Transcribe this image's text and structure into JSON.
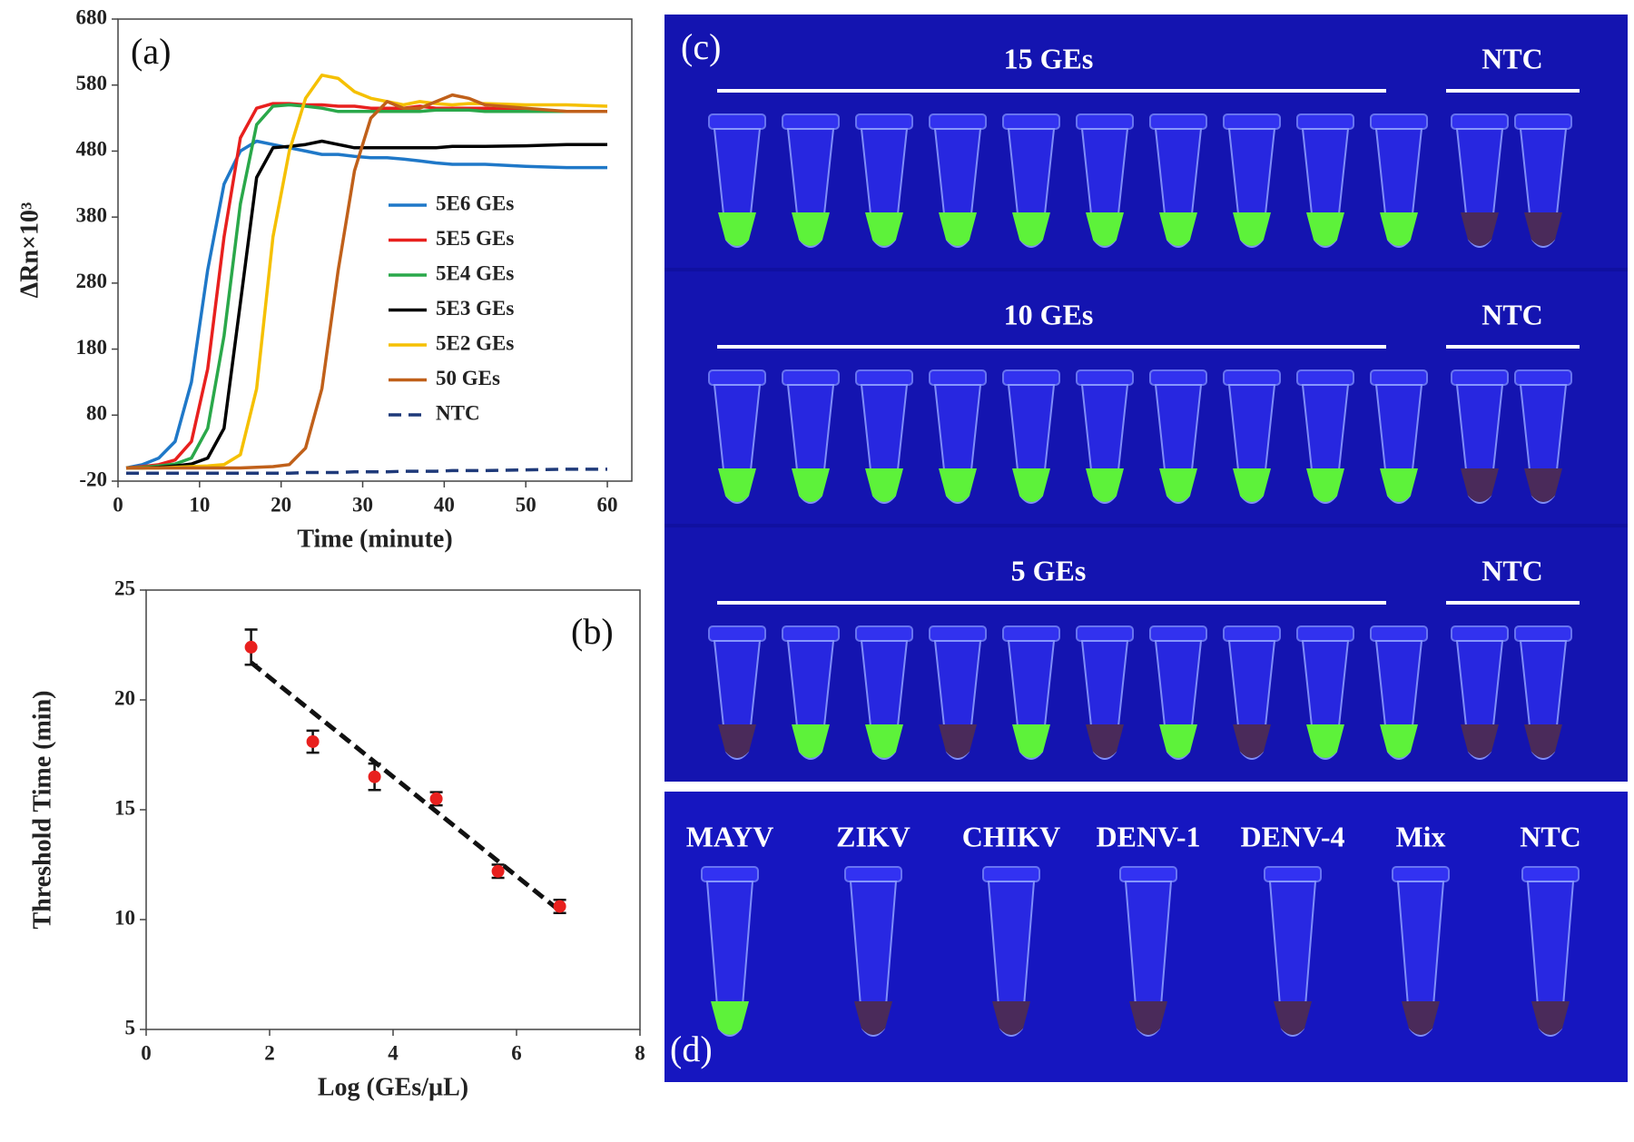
{
  "chart_data": [
    {
      "type": "line",
      "panel_label": "(a)",
      "x_label": "Time (minute)",
      "y_label": "ΔRn×10³",
      "x": [
        1,
        3,
        5,
        7,
        9,
        11,
        13,
        15,
        17,
        19,
        21,
        23,
        25,
        27,
        29,
        31,
        33,
        35,
        37,
        39,
        41,
        43,
        45,
        50,
        55,
        60
      ],
      "xlim": [
        0,
        63
      ],
      "xticks": [
        0,
        10,
        20,
        30,
        40,
        50,
        60
      ],
      "ylim": [
        -20,
        680
      ],
      "yticks": [
        -20,
        80,
        180,
        280,
        380,
        480,
        580,
        680
      ],
      "legend": "right",
      "series": [
        {
          "name": "5E6 GEs",
          "color": "#1f78c8",
          "linestyle": "solid",
          "values": [
            0,
            5,
            15,
            40,
            130,
            300,
            430,
            480,
            495,
            490,
            485,
            480,
            475,
            475,
            472,
            470,
            470,
            468,
            465,
            462,
            460,
            460,
            460,
            457,
            455,
            455
          ]
        },
        {
          "name": "5E5 GEs",
          "color": "#e8201e",
          "linestyle": "solid",
          "values": [
            0,
            2,
            5,
            12,
            40,
            150,
            350,
            500,
            545,
            552,
            552,
            550,
            550,
            548,
            548,
            545,
            545,
            545,
            548,
            545,
            545,
            545,
            545,
            542,
            540,
            540
          ]
        },
        {
          "name": "5E4 GEs",
          "color": "#2aa84a",
          "linestyle": "solid",
          "values": [
            0,
            1,
            3,
            6,
            15,
            60,
            200,
            400,
            520,
            548,
            550,
            548,
            545,
            540,
            540,
            540,
            540,
            540,
            540,
            542,
            542,
            542,
            540,
            540,
            540,
            540
          ]
        },
        {
          "name": "5E3 GEs",
          "color": "#000000",
          "linestyle": "solid",
          "values": [
            0,
            0,
            1,
            3,
            6,
            15,
            60,
            250,
            440,
            485,
            487,
            490,
            495,
            490,
            485,
            485,
            485,
            485,
            485,
            485,
            487,
            487,
            487,
            488,
            490,
            490
          ]
        },
        {
          "name": "5E2 GEs",
          "color": "#f5c000",
          "linestyle": "solid",
          "values": [
            0,
            0,
            0,
            1,
            2,
            3,
            5,
            20,
            120,
            350,
            480,
            560,
            595,
            590,
            570,
            560,
            555,
            550,
            555,
            552,
            550,
            552,
            552,
            550,
            550,
            548
          ]
        },
        {
          "name": "50 GEs",
          "color": "#c0601a",
          "linestyle": "solid",
          "values": [
            0,
            0,
            0,
            0,
            0,
            0,
            0,
            0,
            1,
            2,
            5,
            30,
            120,
            300,
            450,
            530,
            555,
            545,
            545,
            555,
            565,
            560,
            550,
            545,
            540,
            540
          ]
        },
        {
          "name": "NTC",
          "color": "#1f3a7a",
          "linestyle": "dashed",
          "values": [
            -8,
            -8,
            -8,
            -8,
            -8,
            -8,
            -8,
            -8,
            -8,
            -8,
            -8,
            -7,
            -7,
            -7,
            -6,
            -6,
            -6,
            -5,
            -5,
            -5,
            -4,
            -4,
            -4,
            -3,
            -2,
            -2
          ]
        }
      ]
    },
    {
      "type": "scatter",
      "panel_label": "(b)",
      "x_label": "Log (GEs/µL)",
      "y_label": "Threshold Time (min)",
      "xlim": [
        0,
        8
      ],
      "xticks": [
        0,
        2,
        4,
        6,
        8
      ],
      "ylim": [
        5,
        25
      ],
      "yticks": [
        5,
        10,
        15,
        20,
        25
      ],
      "series": [
        {
          "color": "#e8201e",
          "x": [
            1.7,
            2.7,
            3.7,
            4.7,
            5.7,
            6.7
          ],
          "values": [
            22.4,
            18.1,
            16.5,
            15.5,
            12.2,
            10.6
          ],
          "errors": [
            0.8,
            0.5,
            0.6,
            0.3,
            0.3,
            0.3
          ]
        }
      ],
      "trendline": {
        "color": "#111111",
        "x": [
          1.7,
          6.7
        ],
        "values": [
          21.7,
          10.4
        ]
      }
    }
  ],
  "photos": {
    "panel_c": {
      "label": "(c)",
      "rows": [
        {
          "sample": "15 GEs",
          "control": "NTC"
        },
        {
          "sample": "10 GEs",
          "control": "NTC"
        },
        {
          "sample": "5 GEs",
          "control": "NTC"
        }
      ]
    },
    "panel_d": {
      "label": "(d)",
      "samples": [
        "MAYV",
        "ZIKV",
        "CHIKV",
        "DENV-1",
        "DENV-4",
        "Mix",
        "NTC"
      ]
    }
  }
}
